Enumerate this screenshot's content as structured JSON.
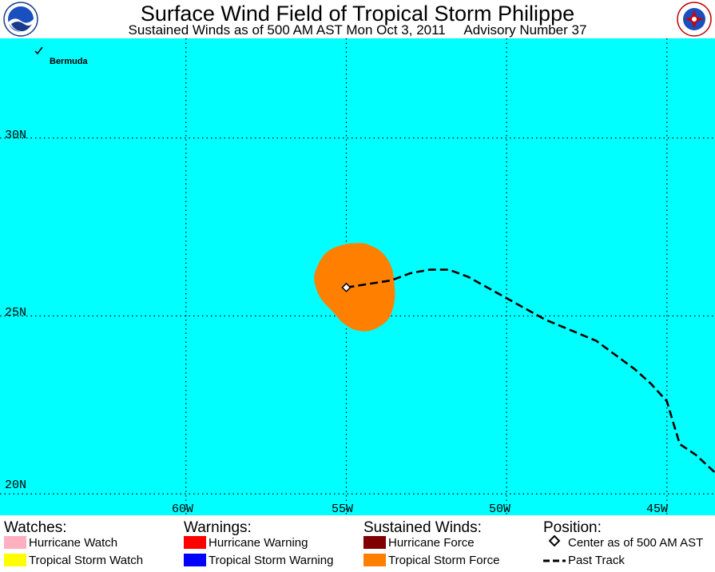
{
  "header": {
    "title": "Surface Wind Field of Tropical Storm Philippe",
    "subtitle": "Sustained Winds as of 500 AM AST Mon Oct 3, 2011     Advisory Number 37"
  },
  "map": {
    "place_label": "Bermuda",
    "lat_labels": [
      "30N",
      "25N",
      "20N"
    ],
    "lon_labels": [
      "60W",
      "55W",
      "50W",
      "45W"
    ],
    "extent": {
      "lon_west": -65.8,
      "lon_east": -43.5,
      "lat_south": 19.4,
      "lat_north": 32.8
    },
    "storm_center": {
      "lon": -55.0,
      "lat": 25.8
    },
    "past_track": [
      [
        -55.0,
        25.8
      ],
      [
        -54.3,
        25.9
      ],
      [
        -53.6,
        26.0
      ],
      [
        -53.0,
        26.2
      ],
      [
        -52.4,
        26.3
      ],
      [
        -51.8,
        26.3
      ],
      [
        -51.2,
        26.1
      ],
      [
        -50.6,
        25.8
      ],
      [
        -50.0,
        25.5
      ],
      [
        -49.4,
        25.2
      ],
      [
        -48.8,
        24.9
      ],
      [
        -48.0,
        24.6
      ],
      [
        -47.2,
        24.3
      ],
      [
        -46.6,
        23.9
      ],
      [
        -46.0,
        23.5
      ],
      [
        -45.5,
        23.1
      ],
      [
        -45.0,
        22.6
      ],
      [
        -44.8,
        22.0
      ],
      [
        -44.6,
        21.4
      ],
      [
        -44.1,
        21.1
      ],
      [
        -43.5,
        20.6
      ]
    ],
    "wind_field_outline": [
      [
        -54.3,
        27.0
      ],
      [
        -53.9,
        26.8
      ],
      [
        -53.6,
        26.4
      ],
      [
        -53.5,
        25.9
      ],
      [
        -53.5,
        25.4
      ],
      [
        -53.7,
        24.9
      ],
      [
        -54.2,
        24.6
      ],
      [
        -54.7,
        24.6
      ],
      [
        -55.1,
        24.8
      ],
      [
        -55.4,
        25.1
      ],
      [
        -55.8,
        25.5
      ],
      [
        -56.0,
        26.0
      ],
      [
        -55.9,
        26.4
      ],
      [
        -55.6,
        26.8
      ],
      [
        -55.1,
        27.0
      ],
      [
        -54.6,
        27.05
      ]
    ],
    "colors": {
      "ocean": "#00ffff",
      "tropical_storm_force": "#ff8000"
    }
  },
  "legend": {
    "watches": {
      "heading": "Watches:",
      "items": [
        {
          "label": "Hurricane Watch",
          "color": "#ffb0c0"
        },
        {
          "label": "Tropical Storm Watch",
          "color": "#ffff00"
        }
      ]
    },
    "warnings": {
      "heading": "Warnings:",
      "items": [
        {
          "label": "Hurricane Warning",
          "color": "#ff0000"
        },
        {
          "label": "Tropical Storm Warning",
          "color": "#0000ff"
        }
      ]
    },
    "winds": {
      "heading": "Sustained Winds:",
      "items": [
        {
          "label": "Hurricane Force",
          "color": "#800000"
        },
        {
          "label": "Tropical Storm Force",
          "color": "#ff8000"
        }
      ]
    },
    "position": {
      "heading": "Position:",
      "items": [
        {
          "label": "Center as of 500 AM AST",
          "icon": "diamond-icon"
        },
        {
          "label": "Past Track",
          "icon": "dashed-line-icon"
        }
      ]
    }
  }
}
